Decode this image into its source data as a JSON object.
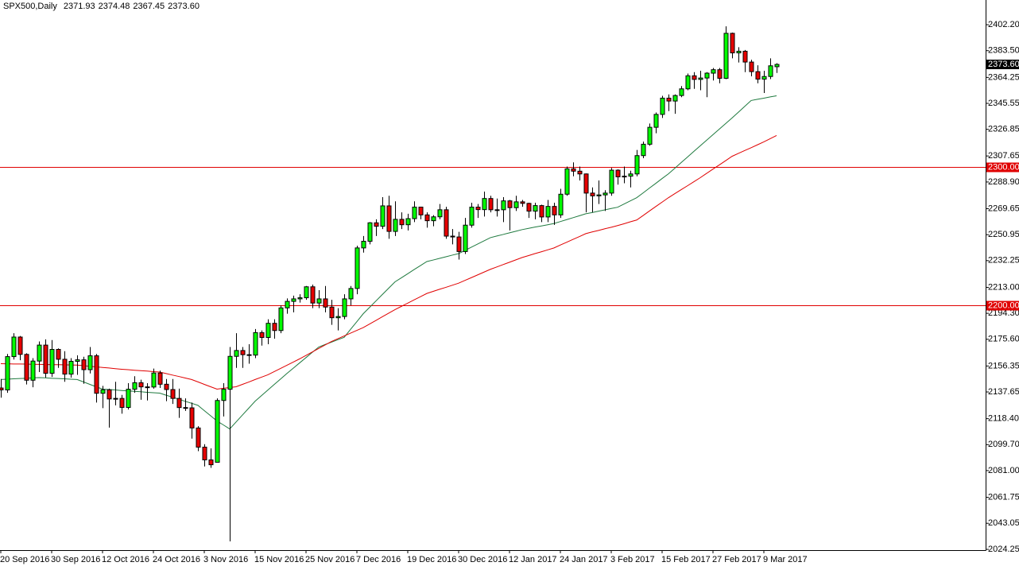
{
  "chart_data": {
    "type": "candlestick",
    "title": "SPX500,Daily",
    "header_ohlc": [
      "2371.93",
      "2374.48",
      "2367.45",
      "2373.60"
    ],
    "categories": [
      "20 Sep 2016",
      null,
      null,
      null,
      null,
      null,
      null,
      null,
      "30 Sep 2016",
      null,
      null,
      null,
      null,
      null,
      null,
      null,
      "12 Oct 2016",
      null,
      null,
      null,
      null,
      null,
      null,
      null,
      "24 Oct 2016",
      null,
      null,
      null,
      null,
      null,
      null,
      null,
      "3 Nov 2016",
      null,
      null,
      null,
      null,
      null,
      null,
      null,
      "15 Nov 2016",
      null,
      null,
      null,
      null,
      null,
      null,
      null,
      "25 Nov 2016",
      null,
      null,
      null,
      null,
      null,
      null,
      null,
      "7 Dec 2016",
      null,
      null,
      null,
      null,
      null,
      null,
      null,
      "19 Dec 2016",
      null,
      null,
      null,
      null,
      null,
      null,
      null,
      "30 Dec 2016",
      null,
      null,
      null,
      null,
      null,
      null,
      null,
      "12 Jan 2017",
      null,
      null,
      null,
      null,
      null,
      null,
      null,
      "24 Jan 2017",
      null,
      null,
      null,
      null,
      null,
      null,
      null,
      "3 Feb 2017",
      null,
      null,
      null,
      null,
      null,
      null,
      null,
      "15 Feb 2017",
      null,
      null,
      null,
      null,
      null,
      null,
      null,
      "27 Feb 2017",
      null,
      null,
      null,
      null,
      null,
      null,
      null,
      "9 Mar 2017",
      null,
      null
    ],
    "open": [
      2140.5,
      2139.1,
      2163.1,
      2177.2,
      2164.7,
      2146.1,
      2159.9,
      2171.4,
      2151.1,
      2168.3,
      2161.2,
      2150.5,
      2159.7,
      2160.8,
      2153.7,
      2163.7,
      2136.7,
      2139.2,
      2132.6,
      2133.0,
      2126.5,
      2139.6,
      2144.3,
      2141.3,
      2141.2,
      2151.3,
      2143.2,
      2139.4,
      2133.0,
      2126.4,
      2126.2,
      2111.7,
      2097.9,
      2088.7,
      2087.0,
      2131.5,
      2139.6,
      2163.3,
      2167.5,
      2164.5,
      2164.2,
      2180.4,
      2176.9,
      2187.1,
      2181.9,
      2198.2,
      2202.9,
      2204.7,
      2205.5,
      2213.4,
      2201.7,
      2204.7,
      2198.8,
      2191.1,
      2192.0,
      2204.7,
      2212.2,
      2241.4,
      2246.2,
      2259.5,
      2257.0,
      2271.7,
      2253.3,
      2262.0,
      2258.1,
      2262.5,
      2270.8,
      2265.2,
      2261.0,
      2263.8,
      2268.9,
      2249.9,
      2249.3,
      2238.8,
      2257.8,
      2270.8,
      2269.0,
      2277.0,
      2268.9,
      2268.9,
      2275.3,
      2270.4,
      2274.6,
      2273.5,
      2267.9,
      2271.9,
      2263.7,
      2271.3,
      2265.2,
      2280.1,
      2298.4,
      2296.7,
      2294.7,
      2280.9,
      2278.9,
      2279.6,
      2280.9,
      2297.4,
      2292.6,
      2293.1,
      2294.7,
      2307.9,
      2316.1,
      2328.3,
      2337.6,
      2349.3,
      2347.2,
      2351.2,
      2356.0,
      2365.4,
      2362.8,
      2363.8,
      2367.3,
      2369.8,
      2363.6,
      2396.0,
      2381.9,
      2383.1,
      2375.3,
      2368.4,
      2363.0,
      2364.9,
      2371.93
    ],
    "high": [
      2147,
      2165,
      2180,
      2178,
      2165.5,
      2162,
      2174,
      2175.5,
      2175,
      2169,
      2167,
      2162,
      2164,
      2163,
      2170,
      2165,
      2142,
      2140,
      2145,
      2135.5,
      2144,
      2149,
      2146.5,
      2144,
      2154.5,
      2153,
      2147,
      2147,
      2140,
      2133,
      2130,
      2113,
      2100,
      2097,
      2133,
      2144,
      2170,
      2180,
      2170,
      2172,
      2183,
      2182,
      2190,
      2190,
      2200,
      2205,
      2207,
      2208,
      2214,
      2215,
      2211,
      2214,
      2204,
      2198,
      2208,
      2214,
      2243,
      2250,
      2260,
      2262,
      2278,
      2279,
      2275,
      2267,
      2266,
      2275,
      2271,
      2267,
      2265,
      2273,
      2271,
      2255,
      2253,
      2263,
      2274,
      2273,
      2282,
      2279,
      2277,
      2278,
      2276,
      2279,
      2276,
      2274,
      2274,
      2272.5,
      2276,
      2274,
      2284,
      2300,
      2303,
      2300,
      2295,
      2285,
      2290,
      2283,
      2299,
      2298,
      2300,
      2297,
      2312,
      2318,
      2331,
      2339,
      2351,
      2352,
      2352,
      2358,
      2367,
      2368,
      2369,
      2368,
      2371,
      2371,
      2401,
      2396.5,
      2386,
      2384,
      2377,
      2373,
      2369,
      2378,
      2374.48
    ],
    "low": [
      2133.5,
      2137,
      2161,
      2160.5,
      2143,
      2141,
      2152,
      2148,
      2148.5,
      2155,
      2145,
      2148,
      2150,
      2143.5,
      2151,
      2130,
      2126,
      2112,
      2128,
      2122,
      2125,
      2137,
      2132,
      2131.5,
      2140,
      2140.5,
      2131,
      2129,
      2119,
      2124,
      2104,
      2095,
      2084,
      2083,
      2087,
      2120,
      2030,
      2155,
      2155,
      2158,
      2162,
      2171,
      2172,
      2176,
      2180,
      2194,
      2195,
      2202,
      2204,
      2198,
      2198,
      2195,
      2186,
      2182,
      2190,
      2200,
      2208,
      2238,
      2244,
      2250,
      2255,
      2248,
      2250,
      2255,
      2254,
      2260,
      2262,
      2256,
      2257,
      2262,
      2248,
      2244,
      2233,
      2237,
      2256,
      2263,
      2264,
      2267,
      2264,
      2260,
      2254,
      2268,
      2271,
      2263,
      2262,
      2260,
      2260,
      2258,
      2263,
      2279,
      2293,
      2290,
      2267,
      2267,
      2273,
      2268,
      2279,
      2287,
      2288,
      2285,
      2293,
      2306,
      2315,
      2324,
      2335,
      2340,
      2338,
      2350,
      2355,
      2356,
      2355,
      2350,
      2362,
      2360,
      2363,
      2378,
      2375,
      2368,
      2365,
      2360,
      2353,
      2363,
      2367.45
    ],
    "close": [
      2139.1,
      2163.1,
      2177.2,
      2164.7,
      2146.1,
      2159.9,
      2171.4,
      2151.1,
      2168.3,
      2161.2,
      2150.5,
      2159.7,
      2160.8,
      2153.7,
      2163.7,
      2136.7,
      2139.2,
      2132.6,
      2133.0,
      2126.5,
      2139.6,
      2144.3,
      2141.3,
      2141.2,
      2151.3,
      2143.2,
      2139.4,
      2133.0,
      2126.4,
      2126.2,
      2111.7,
      2097.9,
      2088.7,
      2085.2,
      2131.5,
      2139.6,
      2163.3,
      2167.5,
      2164.5,
      2164.2,
      2180.4,
      2176.9,
      2187.1,
      2181.9,
      2198.2,
      2202.9,
      2204.7,
      2205.5,
      2213.4,
      2201.7,
      2204.7,
      2198.8,
      2191.1,
      2192.0,
      2204.7,
      2212.2,
      2241.4,
      2246.2,
      2259.5,
      2257.0,
      2271.7,
      2253.3,
      2262.0,
      2258.1,
      2262.5,
      2270.8,
      2265.2,
      2261.0,
      2263.8,
      2268.9,
      2249.9,
      2249.3,
      2238.8,
      2257.8,
      2270.8,
      2269.0,
      2277.0,
      2268.9,
      2268.9,
      2275.3,
      2270.4,
      2274.6,
      2273.5,
      2267.9,
      2271.9,
      2263.7,
      2271.3,
      2265.2,
      2280.1,
      2298.4,
      2296.7,
      2294.7,
      2280.9,
      2278.9,
      2279.6,
      2280.9,
      2297.4,
      2292.6,
      2293.1,
      2294.7,
      2307.9,
      2316.1,
      2328.3,
      2337.6,
      2349.3,
      2347.2,
      2351.2,
      2356.0,
      2365.4,
      2362.8,
      2363.8,
      2367.3,
      2369.8,
      2363.6,
      2396.0,
      2381.9,
      2383.1,
      2375.3,
      2368.4,
      2363.0,
      2364.9,
      2372.6,
      2373.6
    ],
    "up_color": "#00ff00",
    "down_color": "#e60000",
    "lines": [
      {
        "color": "#1f7a3f",
        "values": [
          2146.6,
          2146.8,
          2147.1,
          2147.3,
          2147.5,
          2147.8,
          2148.0,
          2147.8,
          2147.5,
          2147.3,
          2147.1,
          2146.8,
          2146.6,
          2144.9,
          2143.1,
          2141.4,
          2139.7,
          2139.4,
          2139.1,
          2138.7,
          2138.4,
          2138.1,
          2137.8,
          2137.4,
          2137.1,
          2136.8,
          2135.3,
          2133.9,
          2132.4,
          2130.9,
          2129.5,
          2128.0,
          2124.2,
          2120.5,
          2116.7,
          2113.9,
          2111.0,
          2116,
          2121,
          2126,
          2131,
          2135,
          2139,
          2143,
          2147,
          2151,
          2154.8,
          2158.6,
          2162.4,
          2166.2,
          2170,
          2171.8,
          2173.5,
          2175.3,
          2177,
          2182.7,
          2188.3,
          2194,
          2198.6,
          2203.2,
          2207.8,
          2212.4,
          2217,
          2219.9,
          2222.8,
          2225.8,
          2228.7,
          2231.6,
          2232.7,
          2233.9,
          2235,
          2236.2,
          2237.3,
          2239.6,
          2241.9,
          2244.2,
          2246.5,
          2248.8,
          2250,
          2251.1,
          2252.3,
          2253.4,
          2254.6,
          2255.5,
          2256.4,
          2257.2,
          2258.1,
          2259,
          2260.4,
          2261.8,
          2263.2,
          2264.6,
          2266,
          2266.9,
          2267.9,
          2268.8,
          2269.8,
          2270.7,
          2273,
          2275.3,
          2277.6,
          2281,
          2284.5,
          2287.9,
          2291.4,
          2294.8,
          2298.8,
          2302.9,
          2306.9,
          2311,
          2315,
          2319,
          2323,
          2327,
          2331,
          2335,
          2339.2,
          2343.4,
          2347.6,
          2348.5,
          2349.3,
          2350.2,
          2351
        ]
      },
      {
        "color": "#e00000",
        "values": [
          2158,
          2157.9,
          2157.8,
          2157.8,
          2157.7,
          2157.6,
          2157.5,
          2157.4,
          2157.3,
          2157.3,
          2157.2,
          2157.1,
          2157,
          2156.6,
          2156.1,
          2155.7,
          2155.3,
          2154.9,
          2154.4,
          2154,
          2153.7,
          2153.3,
          2153,
          2152.7,
          2152.3,
          2152,
          2150.9,
          2149.8,
          2148.8,
          2147.7,
          2146.6,
          2144.9,
          2143.1,
          2141.4,
          2139.7,
          2140.3,
          2140.8,
          2141.4,
          2143.1,
          2144.8,
          2146.6,
          2148.3,
          2150,
          2152.3,
          2154.6,
          2156.9,
          2159.2,
          2161.5,
          2164,
          2166.5,
          2169,
          2171.5,
          2174,
          2176,
          2178,
          2180,
          2182,
          2184,
          2186.6,
          2189.2,
          2191.8,
          2194.4,
          2197,
          2199.3,
          2201.6,
          2204,
          2206.3,
          2208.6,
          2210.1,
          2211.6,
          2213,
          2214.5,
          2216,
          2218,
          2220,
          2222,
          2224,
          2226,
          2227.7,
          2229.4,
          2231.1,
          2232.8,
          2234.5,
          2235.9,
          2237.3,
          2238.6,
          2240,
          2241.4,
          2243.5,
          2245.5,
          2247.6,
          2249.6,
          2251.7,
          2252.9,
          2254,
          2255.2,
          2256.3,
          2257.5,
          2258.8,
          2260.2,
          2261.5,
          2264.7,
          2268,
          2271.2,
          2274.4,
          2277.6,
          2280.5,
          2283.4,
          2286.2,
          2289.1,
          2292,
          2295.1,
          2298.2,
          2301.2,
          2304.3,
          2307.4,
          2309.5,
          2311.6,
          2313.6,
          2315.7,
          2317.8,
          2320.1,
          2322.4
        ]
      }
    ],
    "levels": [
      {
        "value": 2300,
        "label": "2300.00",
        "color": "#e00000"
      },
      {
        "value": 2200,
        "label": "2200.00",
        "color": "#e00000"
      }
    ],
    "last_price": {
      "value": 2373.6,
      "label": "2373.60"
    },
    "ylim": [
      2023.7,
      2420
    ],
    "yticks": [
      {
        "value": 2402.2,
        "label": "2402.20"
      },
      {
        "value": 2383.5,
        "label": "2383.50"
      },
      {
        "value": 2364.25,
        "label": "2364.25"
      },
      {
        "value": 2345.55,
        "label": "2345.55"
      },
      {
        "value": 2326.85,
        "label": "2326.85"
      },
      {
        "value": 2307.65,
        "label": "2307.65"
      },
      {
        "value": 2288.9,
        "label": "2288.90"
      },
      {
        "value": 2269.65,
        "label": "2269.65"
      },
      {
        "value": 2250.95,
        "label": "2250.95"
      },
      {
        "value": 2232.25,
        "label": "2232.25"
      },
      {
        "value": 2213,
        "label": "2213.00"
      },
      {
        "value": 2194.3,
        "label": "2194.30"
      },
      {
        "value": 2175.6,
        "label": "2175.60"
      },
      {
        "value": 2156.35,
        "label": "2156.35"
      },
      {
        "value": 2137.65,
        "label": "2137.65"
      },
      {
        "value": 2118.4,
        "label": "2118.40"
      },
      {
        "value": 2099.7,
        "label": "2099.70"
      },
      {
        "value": 2081,
        "label": "2081.00"
      },
      {
        "value": 2061.75,
        "label": "2061.75"
      },
      {
        "value": 2043.05,
        "label": "2043.05"
      },
      {
        "value": 2024.25,
        "label": "2024.25"
      }
    ]
  }
}
